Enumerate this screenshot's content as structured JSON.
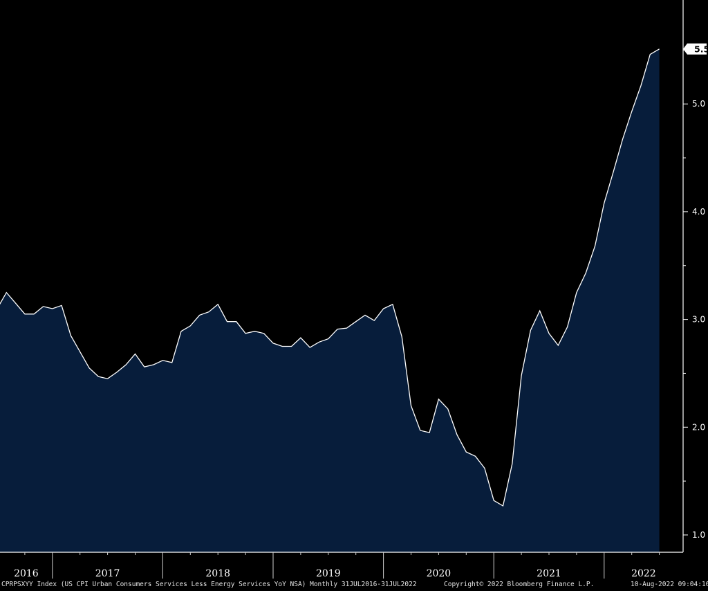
{
  "chart_data": {
    "type": "area",
    "series": [
      {
        "ticker": "CPRPSXYY Index",
        "frequency": "Monthly",
        "x": [
          "2016-07",
          "2016-08",
          "2016-09",
          "2016-10",
          "2016-11",
          "2016-12",
          "2017-01",
          "2017-02",
          "2017-03",
          "2017-04",
          "2017-05",
          "2017-06",
          "2017-07",
          "2017-08",
          "2017-09",
          "2017-10",
          "2017-11",
          "2017-12",
          "2018-01",
          "2018-02",
          "2018-03",
          "2018-04",
          "2018-05",
          "2018-06",
          "2018-07",
          "2018-08",
          "2018-09",
          "2018-10",
          "2018-11",
          "2018-12",
          "2019-01",
          "2019-02",
          "2019-03",
          "2019-04",
          "2019-05",
          "2019-06",
          "2019-07",
          "2019-08",
          "2019-09",
          "2019-10",
          "2019-11",
          "2019-12",
          "2020-01",
          "2020-02",
          "2020-03",
          "2020-04",
          "2020-05",
          "2020-06",
          "2020-07",
          "2020-08",
          "2020-09",
          "2020-10",
          "2020-11",
          "2020-12",
          "2021-01",
          "2021-02",
          "2021-03",
          "2021-04",
          "2021-05",
          "2021-06",
          "2021-07",
          "2021-08",
          "2021-09",
          "2021-10",
          "2021-11",
          "2021-12",
          "2022-01",
          "2022-02",
          "2022-03",
          "2022-04",
          "2022-05",
          "2022-06",
          "2022-07"
        ],
        "values": [
          3.1,
          3.25,
          3.15,
          3.05,
          3.05,
          3.12,
          3.1,
          3.13,
          2.85,
          2.7,
          2.55,
          2.47,
          2.45,
          2.51,
          2.58,
          2.68,
          2.56,
          2.58,
          2.62,
          2.6,
          2.89,
          2.94,
          3.04,
          3.07,
          3.14,
          2.98,
          2.98,
          2.87,
          2.89,
          2.87,
          2.78,
          2.75,
          2.75,
          2.83,
          2.74,
          2.79,
          2.82,
          2.91,
          2.92,
          2.98,
          3.04,
          2.99,
          3.1,
          3.14,
          2.84,
          2.2,
          1.97,
          1.95,
          2.26,
          2.17,
          1.93,
          1.77,
          1.73,
          1.62,
          1.32,
          1.27,
          1.66,
          2.48,
          2.9,
          3.08,
          2.87,
          2.76,
          2.93,
          3.25,
          3.43,
          3.68,
          4.08,
          4.37,
          4.67,
          4.93,
          5.17,
          5.46,
          5.51
        ]
      }
    ],
    "ylim": [
      0.85,
      5.75
    ],
    "y_ticks": [
      "1.0",
      "2.0",
      "3.0",
      "4.0",
      "5.0"
    ],
    "last_value_label": "5.5",
    "year_labels": [
      "2016",
      "2017",
      "2018",
      "2019",
      "2020",
      "2021",
      "2022"
    ],
    "grid": false,
    "colors": {
      "background": "#000000",
      "fill": "#071d3b",
      "line": "#ffffff",
      "text": "#ffffff"
    }
  },
  "footer": {
    "description": "CPRPSXYY Index (US CPI Urban Consumers Services Less Energy Services YoY NSA) Monthly 31JUL2016-31JUL2022",
    "copyright": "Copyright© 2022 Bloomberg Finance L.P.",
    "timestamp": "10-Aug-2022 09:04:16"
  }
}
